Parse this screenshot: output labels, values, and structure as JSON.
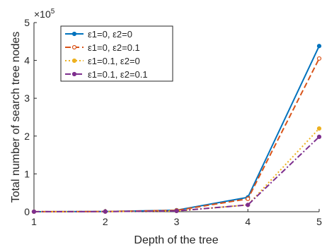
{
  "chart_data": {
    "type": "line",
    "xlabel": "Depth of the tree",
    "ylabel": "Total number of search tree nodes",
    "multiplier_base": "×10",
    "multiplier_exp": "5",
    "x": [
      1,
      2,
      3,
      4,
      5
    ],
    "xlim": [
      1,
      5
    ],
    "ylim": [
      0,
      5
    ],
    "x_ticks": [
      "1",
      "2",
      "3",
      "4",
      "5"
    ],
    "y_ticks": [
      "0",
      "1",
      "2",
      "3",
      "4",
      "5"
    ],
    "grid": false,
    "legend_position": "top-left",
    "series": [
      {
        "name": "ε1=0, ε2=0",
        "values": [
          0.001,
          0.005,
          0.04,
          0.38,
          4.38
        ],
        "color": "#0072BD",
        "style": "solid",
        "marker": "circle"
      },
      {
        "name": "ε1=0, ε2=0.1",
        "values": [
          0.001,
          0.005,
          0.035,
          0.34,
          4.05
        ],
        "color": "#D95319",
        "style": "dashed",
        "marker": "circle-open"
      },
      {
        "name": "ε1=0.1, ε2=0",
        "values": [
          0.001,
          0.004,
          0.02,
          0.18,
          2.2
        ],
        "color": "#EDB120",
        "style": "dotted",
        "marker": "circle"
      },
      {
        "name": "ε1=0.1, ε2=0.1",
        "values": [
          0.001,
          0.004,
          0.02,
          0.18,
          1.98
        ],
        "color": "#7E2F8E",
        "style": "dashdot",
        "marker": "circle"
      }
    ]
  }
}
